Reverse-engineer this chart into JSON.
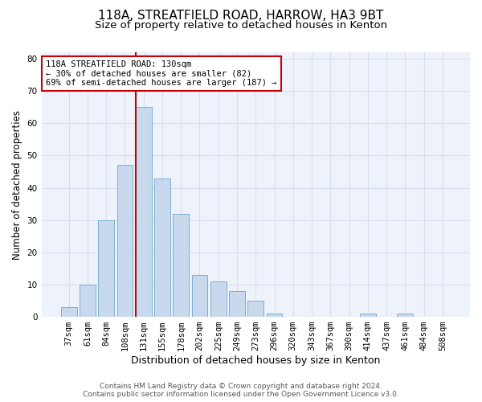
{
  "title1": "118A, STREATFIELD ROAD, HARROW, HA3 9BT",
  "title2": "Size of property relative to detached houses in Kenton",
  "xlabel": "Distribution of detached houses by size in Kenton",
  "ylabel": "Number of detached properties",
  "categories": [
    "37sqm",
    "61sqm",
    "84sqm",
    "108sqm",
    "131sqm",
    "155sqm",
    "178sqm",
    "202sqm",
    "225sqm",
    "249sqm",
    "273sqm",
    "296sqm",
    "320sqm",
    "343sqm",
    "367sqm",
    "390sqm",
    "414sqm",
    "437sqm",
    "461sqm",
    "484sqm",
    "508sqm"
  ],
  "values": [
    3,
    10,
    30,
    47,
    65,
    43,
    32,
    13,
    11,
    8,
    5,
    1,
    0,
    0,
    0,
    0,
    1,
    0,
    1,
    0,
    0
  ],
  "bar_color": "#c9d9ed",
  "bar_edge_color": "#7ab0d4",
  "highlight_bar_index": 4,
  "highlight_line_color": "#cc0000",
  "annotation_line1": "118A STREATFIELD ROAD: 130sqm",
  "annotation_line2": "← 30% of detached houses are smaller (82)",
  "annotation_line3": "69% of semi-detached houses are larger (187) →",
  "annotation_box_color": "#ffffff",
  "annotation_box_edge_color": "#cc0000",
  "ylim": [
    0,
    82
  ],
  "yticks": [
    0,
    10,
    20,
    30,
    40,
    50,
    60,
    70,
    80
  ],
  "grid_color": "#d8dff0",
  "background_color": "#eef2fa",
  "footer1": "Contains HM Land Registry data © Crown copyright and database right 2024.",
  "footer2": "Contains public sector information licensed under the Open Government Licence v3.0.",
  "title1_fontsize": 11,
  "title2_fontsize": 9.5,
  "xlabel_fontsize": 9,
  "ylabel_fontsize": 8.5,
  "tick_fontsize": 7.5,
  "annotation_fontsize": 7.5,
  "footer_fontsize": 6.5
}
